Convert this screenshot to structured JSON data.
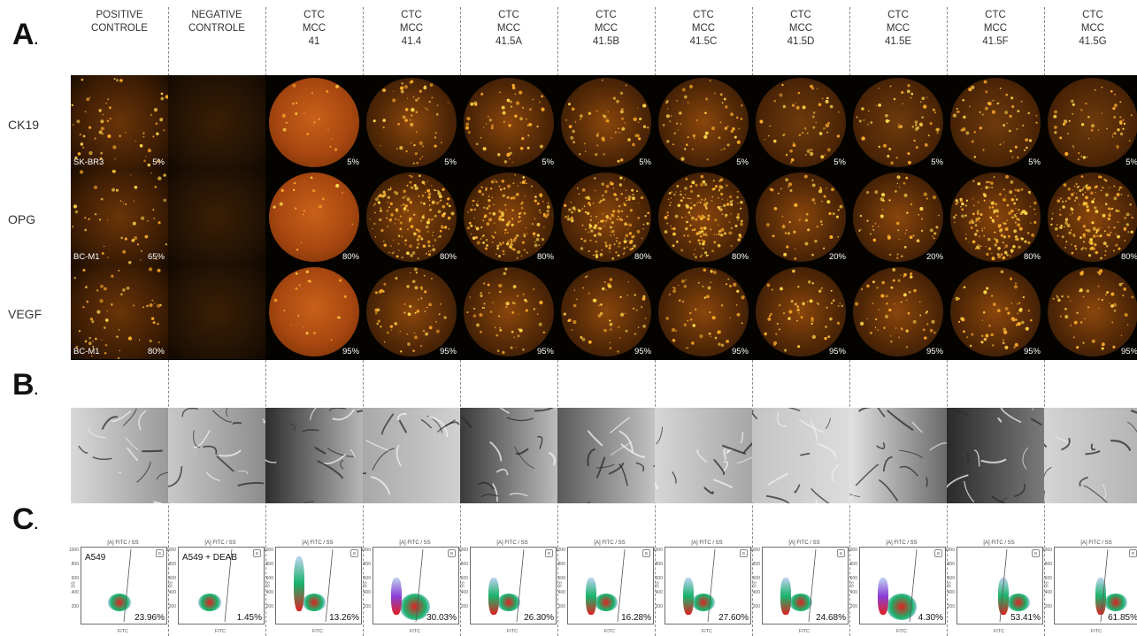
{
  "sections": {
    "a": "A",
    "b": "B",
    "c": "C",
    "dot": "."
  },
  "columns": [
    {
      "lines": [
        "POSITIVE",
        "CONTROLE"
      ]
    },
    {
      "lines": [
        "NEGATIVE",
        "CONTROLE"
      ]
    },
    {
      "lines": [
        "CTC",
        "MCC",
        "41"
      ]
    },
    {
      "lines": [
        "CTC",
        "MCC",
        "41.4"
      ]
    },
    {
      "lines": [
        "CTC",
        "MCC",
        "41.5A"
      ]
    },
    {
      "lines": [
        "CTC",
        "MCC",
        "41.5B"
      ]
    },
    {
      "lines": [
        "CTC",
        "MCC",
        "41.5C"
      ]
    },
    {
      "lines": [
        "CTC",
        "MCC",
        "41.5D"
      ]
    },
    {
      "lines": [
        "CTC",
        "MCC",
        "41.5E"
      ]
    },
    {
      "lines": [
        "CTC",
        "MCC",
        "41.5F"
      ]
    },
    {
      "lines": [
        "CTC",
        "MCC",
        "41.5G"
      ]
    }
  ],
  "fluorescence_rows": [
    {
      "label": "CK19",
      "cell_line": "SK-BR3",
      "percents": [
        "5%",
        "",
        "5%",
        "5%",
        "5%",
        "5%",
        "5%",
        "5%",
        "5%",
        "5%",
        "5%"
      ]
    },
    {
      "label": "OPG",
      "cell_line": "BC-M1",
      "percents": [
        "65%",
        "",
        "80%",
        "80%",
        "80%",
        "80%",
        "80%",
        "20%",
        "20%",
        "80%",
        "80%"
      ]
    },
    {
      "label": "VEGF",
      "cell_line": "BC-M1",
      "percents": [
        "80%",
        "",
        "95%",
        "95%",
        "95%",
        "95%",
        "95%",
        "95%",
        "95%",
        "95%",
        "95%"
      ]
    }
  ],
  "flow": {
    "title": "[A] FITC / SS",
    "x_label": "FITC",
    "y_label": "SS",
    "y_ticks": [
      "1000",
      "800",
      "600",
      "400",
      "200"
    ],
    "badge": "B",
    "samples": [
      "A549",
      "A549 + DEAB",
      "",
      "",
      "",
      "",
      "",
      "",
      "",
      "",
      ""
    ],
    "percents": [
      "23.96%",
      "1.45%",
      "13.26%",
      "30.03%",
      "26.30%",
      "16.28%",
      "27.60%",
      "24.68%",
      "4.30%",
      "53.41%",
      "61.85%"
    ],
    "fitc_positive_fraction": [
      0.2396,
      0.0145,
      0.1326,
      0.3003,
      0.263,
      0.1628,
      0.276,
      0.2468,
      0.043,
      0.5341,
      0.6185
    ]
  },
  "colors": {
    "fluor_bg": "#050300",
    "fluor_glow": "#d98a1a",
    "fluor_spot": "#ffd54a",
    "flow_red": "#e02020",
    "flow_green": "#19b36b",
    "flow_blue": "#2d6fd1",
    "flow_purple": "#8a3fd6"
  }
}
